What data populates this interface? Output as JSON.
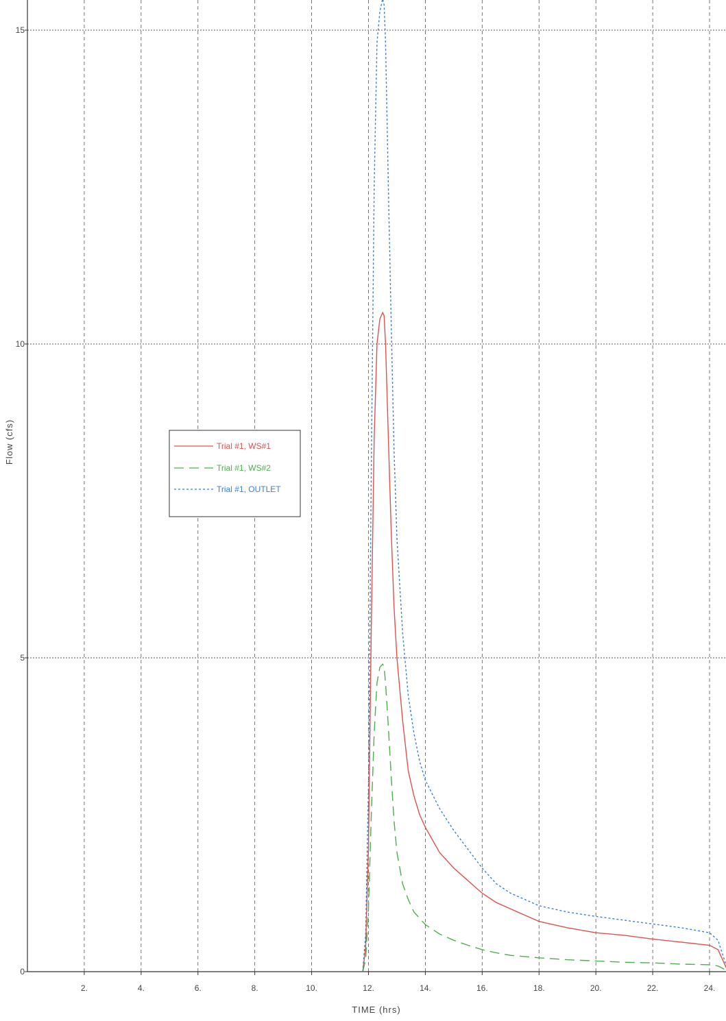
{
  "chart_data": {
    "type": "line",
    "xlabel": "TIME (hrs)",
    "ylabel": "Flow (cfs)",
    "xlim": [
      0,
      24.6
    ],
    "ylim": [
      0,
      15.5
    ],
    "xticks": [
      2,
      4,
      6,
      8,
      10,
      12,
      14,
      16,
      18,
      20,
      22,
      24
    ],
    "xtick_labels": [
      "2.",
      "4.",
      "6.",
      "8.",
      "10.",
      "12.",
      "14.",
      "16.",
      "18.",
      "20.",
      "22.",
      "24."
    ],
    "yticks": [
      0,
      5,
      10,
      15
    ],
    "ytick_labels": [
      "0",
      "5",
      "10",
      "15"
    ],
    "grid": true,
    "legend_position": "center-left",
    "series": [
      {
        "name": "Trial #1, WS#1",
        "color": "#d9534f",
        "dash": "solid",
        "x": [
          11.8,
          11.9,
          12.0,
          12.1,
          12.2,
          12.3,
          12.4,
          12.5,
          12.55,
          12.6,
          12.7,
          12.8,
          12.9,
          13.0,
          13.2,
          13.4,
          13.6,
          13.8,
          14.0,
          14.5,
          15.0,
          15.5,
          16.0,
          16.5,
          17.0,
          18.0,
          19.0,
          20.0,
          21.0,
          22.0,
          23.0,
          24.0,
          24.3,
          24.6
        ],
        "y": [
          0.0,
          0.4,
          2.0,
          5.5,
          8.5,
          10.0,
          10.4,
          10.5,
          10.45,
          10.0,
          8.5,
          7.0,
          5.8,
          5.0,
          4.0,
          3.2,
          2.8,
          2.5,
          2.3,
          1.9,
          1.65,
          1.45,
          1.25,
          1.1,
          1.0,
          0.8,
          0.7,
          0.62,
          0.58,
          0.52,
          0.47,
          0.42,
          0.35,
          0.05
        ]
      },
      {
        "name": "Trial #1, WS#2",
        "color": "#4cae4c",
        "dash": "long-dash",
        "x": [
          11.8,
          11.9,
          12.0,
          12.1,
          12.2,
          12.3,
          12.4,
          12.5,
          12.55,
          12.6,
          12.7,
          12.8,
          12.9,
          13.0,
          13.2,
          13.4,
          13.6,
          13.8,
          14.0,
          14.5,
          15.0,
          15.5,
          16.0,
          16.5,
          17.0,
          18.0,
          19.0,
          20.0,
          21.0,
          22.0,
          23.0,
          24.0,
          24.3,
          24.6
        ],
        "y": [
          0.0,
          0.2,
          1.0,
          2.5,
          3.8,
          4.6,
          4.85,
          4.9,
          4.85,
          4.6,
          3.9,
          3.1,
          2.4,
          1.9,
          1.4,
          1.15,
          0.95,
          0.85,
          0.75,
          0.6,
          0.5,
          0.42,
          0.35,
          0.3,
          0.26,
          0.22,
          0.19,
          0.17,
          0.15,
          0.14,
          0.12,
          0.11,
          0.09,
          0.02
        ]
      },
      {
        "name": "Trial #1, OUTLET",
        "color": "#3a7fd5",
        "dash": "dotted",
        "x": [
          11.8,
          11.9,
          12.0,
          12.1,
          12.2,
          12.3,
          12.4,
          12.5,
          12.55,
          12.6,
          12.7,
          12.8,
          12.9,
          13.0,
          13.2,
          13.4,
          13.6,
          13.8,
          14.0,
          14.5,
          15.0,
          15.5,
          16.0,
          16.5,
          17.0,
          18.0,
          19.0,
          20.0,
          21.0,
          22.0,
          23.0,
          24.0,
          24.3,
          24.6
        ],
        "y": [
          0.0,
          0.6,
          3.0,
          8.0,
          12.5,
          14.8,
          15.3,
          15.5,
          15.4,
          14.8,
          12.5,
          10.3,
          8.3,
          6.9,
          5.4,
          4.4,
          3.8,
          3.35,
          3.05,
          2.6,
          2.25,
          1.95,
          1.65,
          1.4,
          1.25,
          1.05,
          0.95,
          0.88,
          0.82,
          0.76,
          0.7,
          0.62,
          0.5,
          0.08
        ]
      }
    ]
  }
}
